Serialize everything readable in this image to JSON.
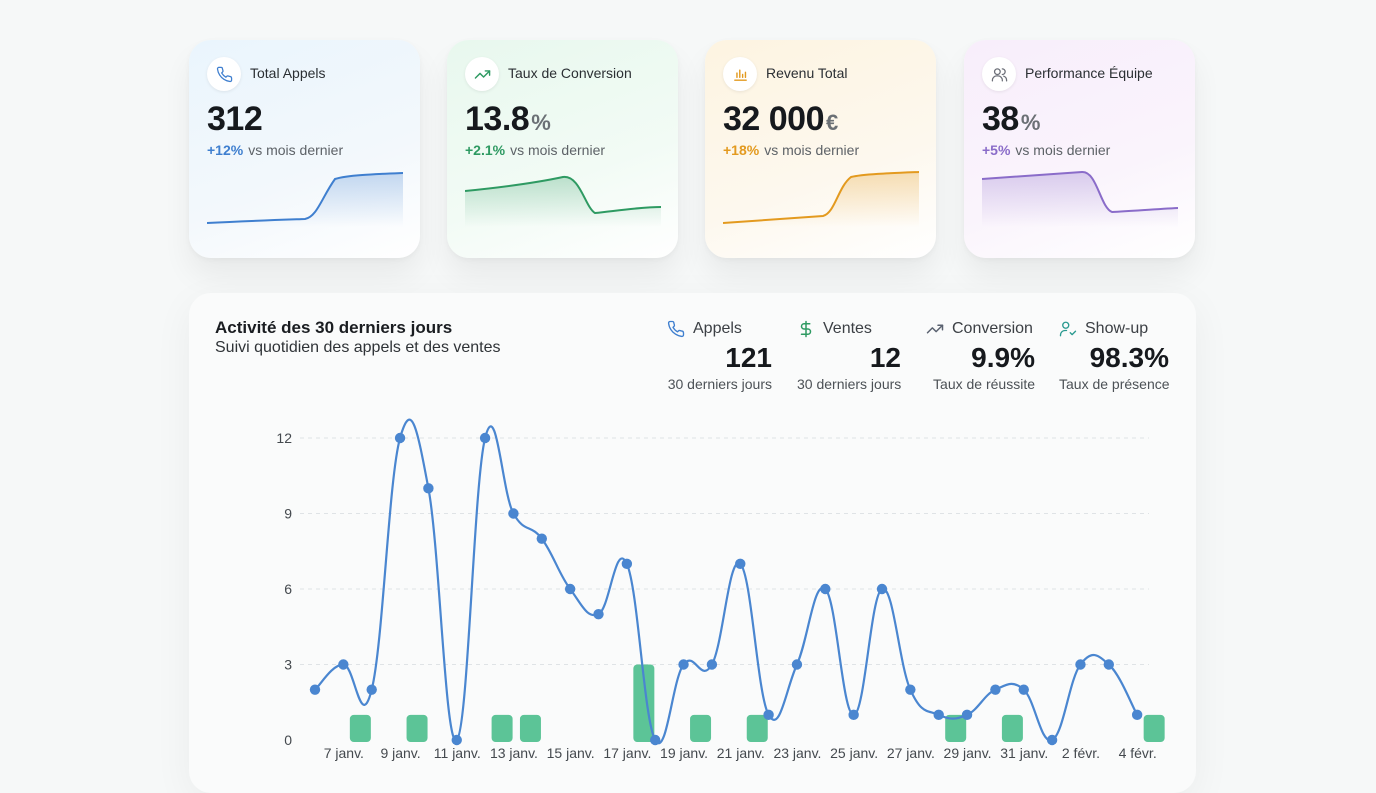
{
  "kpis": [
    {
      "title": "Total Appels",
      "value": "312",
      "unit": "",
      "delta": "+12%",
      "delta_label": "vs mois dernier",
      "color": "#3f7fcf",
      "icon": "phone-icon"
    },
    {
      "title": "Taux de Conversion",
      "value": "13.8",
      "unit": "%",
      "delta": "+2.1%",
      "delta_label": "vs mois dernier",
      "color": "#2e9a62",
      "icon": "trending-up-icon"
    },
    {
      "title": "Revenu Total",
      "value": "32 000",
      "unit": "€",
      "delta": "+18%",
      "delta_label": "vs mois dernier",
      "color": "#e39a1f",
      "icon": "bar-chart-icon"
    },
    {
      "title": "Performance Équipe",
      "value": "38",
      "unit": "%",
      "delta": "+5%",
      "delta_label": "vs mois dernier",
      "color": "#8a6cc9",
      "icon": "users-icon"
    }
  ],
  "panel": {
    "title": "Activité des 30 derniers jours",
    "subtitle": "Suivi quotidien des appels et des ventes",
    "stats": [
      {
        "label": "Appels",
        "value": "121",
        "foot": "30 derniers jours",
        "icon": "phone-icon"
      },
      {
        "label": "Ventes",
        "value": "12",
        "foot": "30 derniers jours",
        "icon": "dollar-icon"
      },
      {
        "label": "Conversion",
        "value": "9.9%",
        "foot": "Taux de réussite",
        "icon": "trending-up-icon"
      },
      {
        "label": "Show-up",
        "value": "98.3%",
        "foot": "Taux de présence",
        "icon": "user-check-icon"
      }
    ]
  },
  "chart_data": {
    "type": "line",
    "ylim": [
      0,
      12
    ],
    "yticks": [
      0,
      3,
      6,
      9,
      12
    ],
    "grid": true,
    "x_tick_labels": [
      "7 janv.",
      "9 janv.",
      "11 janv.",
      "13 janv.",
      "15 janv.",
      "17 janv.",
      "19 janv.",
      "21 janv.",
      "23 janv.",
      "25 janv.",
      "27 janv.",
      "29 janv.",
      "31 janv.",
      "2 févr.",
      "4 févr."
    ],
    "series": [
      {
        "name": "Appels",
        "type": "line",
        "color": "#4a86d0",
        "values": [
          2,
          3,
          2,
          12,
          10,
          0,
          12,
          9,
          8,
          6,
          5,
          7,
          0,
          3,
          3,
          7,
          1,
          3,
          6,
          1,
          6,
          2,
          1,
          1,
          2,
          2,
          0,
          3,
          3,
          1
        ]
      },
      {
        "name": "Ventes",
        "type": "bar",
        "color": "#5cc497",
        "values": [
          0,
          1,
          0,
          1,
          0,
          0,
          1,
          1,
          0,
          0,
          0,
          3,
          0,
          1,
          0,
          1,
          0,
          0,
          0,
          0,
          0,
          0,
          1,
          0,
          1,
          0,
          0,
          0,
          0,
          1
        ]
      }
    ]
  }
}
